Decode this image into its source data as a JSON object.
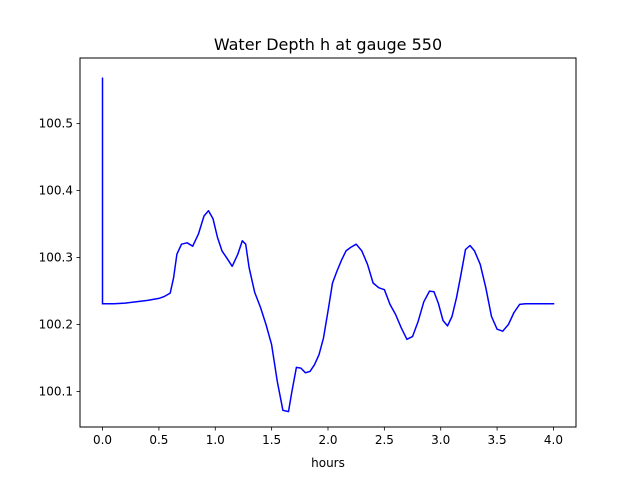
{
  "chart_data": {
    "type": "line",
    "title": "Water Depth h at gauge 550",
    "xlabel": "hours",
    "ylabel": "",
    "xlim": [
      -0.2,
      4.2
    ],
    "ylim": [
      100.047,
      100.598
    ],
    "xticks": [
      0.0,
      0.5,
      1.0,
      1.5,
      2.0,
      2.5,
      3.0,
      3.5,
      4.0
    ],
    "xtick_labels": [
      "0.0",
      "0.5",
      "1.0",
      "1.5",
      "2.0",
      "2.5",
      "3.0",
      "3.5",
      "4.0"
    ],
    "yticks": [
      100.1,
      100.2,
      100.3,
      100.4,
      100.5
    ],
    "ytick_labels": [
      "100.1",
      "100.2",
      "100.3",
      "100.4",
      "100.5"
    ],
    "grid": false,
    "legend": "none",
    "series": [
      {
        "color": "#0000ff",
        "x": [
          0.0,
          0.0,
          0.0,
          0.1,
          0.2,
          0.3,
          0.4,
          0.5,
          0.55,
          0.6,
          0.63,
          0.66,
          0.7,
          0.75,
          0.8,
          0.85,
          0.9,
          0.94,
          0.98,
          1.02,
          1.06,
          1.1,
          1.15,
          1.2,
          1.24,
          1.27,
          1.3,
          1.35,
          1.4,
          1.45,
          1.5,
          1.55,
          1.6,
          1.65,
          1.68,
          1.72,
          1.76,
          1.8,
          1.84,
          1.88,
          1.92,
          1.96,
          2.0,
          2.04,
          2.08,
          2.12,
          2.16,
          2.2,
          2.25,
          2.3,
          2.35,
          2.4,
          2.45,
          2.5,
          2.55,
          2.6,
          2.65,
          2.7,
          2.75,
          2.8,
          2.85,
          2.9,
          2.94,
          2.98,
          3.02,
          3.06,
          3.1,
          3.14,
          3.18,
          3.22,
          3.26,
          3.3,
          3.35,
          3.4,
          3.45,
          3.5,
          3.55,
          3.6,
          3.65,
          3.7,
          3.75,
          3.8,
          3.85,
          3.9,
          3.95,
          4.0
        ],
        "y": [
          100.231,
          100.568,
          100.231,
          100.231,
          100.232,
          100.234,
          100.236,
          100.239,
          100.242,
          100.247,
          100.27,
          100.305,
          100.32,
          100.322,
          100.317,
          100.335,
          100.362,
          100.37,
          100.358,
          100.33,
          100.31,
          100.3,
          100.287,
          100.305,
          100.325,
          100.32,
          100.285,
          100.248,
          100.226,
          100.2,
          100.17,
          100.115,
          100.072,
          100.07,
          100.1,
          100.136,
          100.135,
          100.128,
          100.13,
          100.14,
          100.155,
          100.18,
          100.22,
          100.262,
          100.28,
          100.296,
          100.31,
          100.315,
          100.32,
          100.31,
          100.29,
          100.262,
          100.255,
          100.252,
          100.23,
          100.215,
          100.195,
          100.178,
          100.182,
          100.205,
          100.234,
          100.25,
          100.249,
          100.231,
          100.206,
          100.198,
          100.212,
          100.24,
          100.275,
          100.312,
          100.318,
          100.31,
          100.29,
          100.255,
          100.212,
          100.193,
          100.19,
          100.2,
          100.218,
          100.23,
          100.231,
          100.231,
          100.231,
          100.231,
          100.231,
          100.231
        ]
      }
    ]
  }
}
